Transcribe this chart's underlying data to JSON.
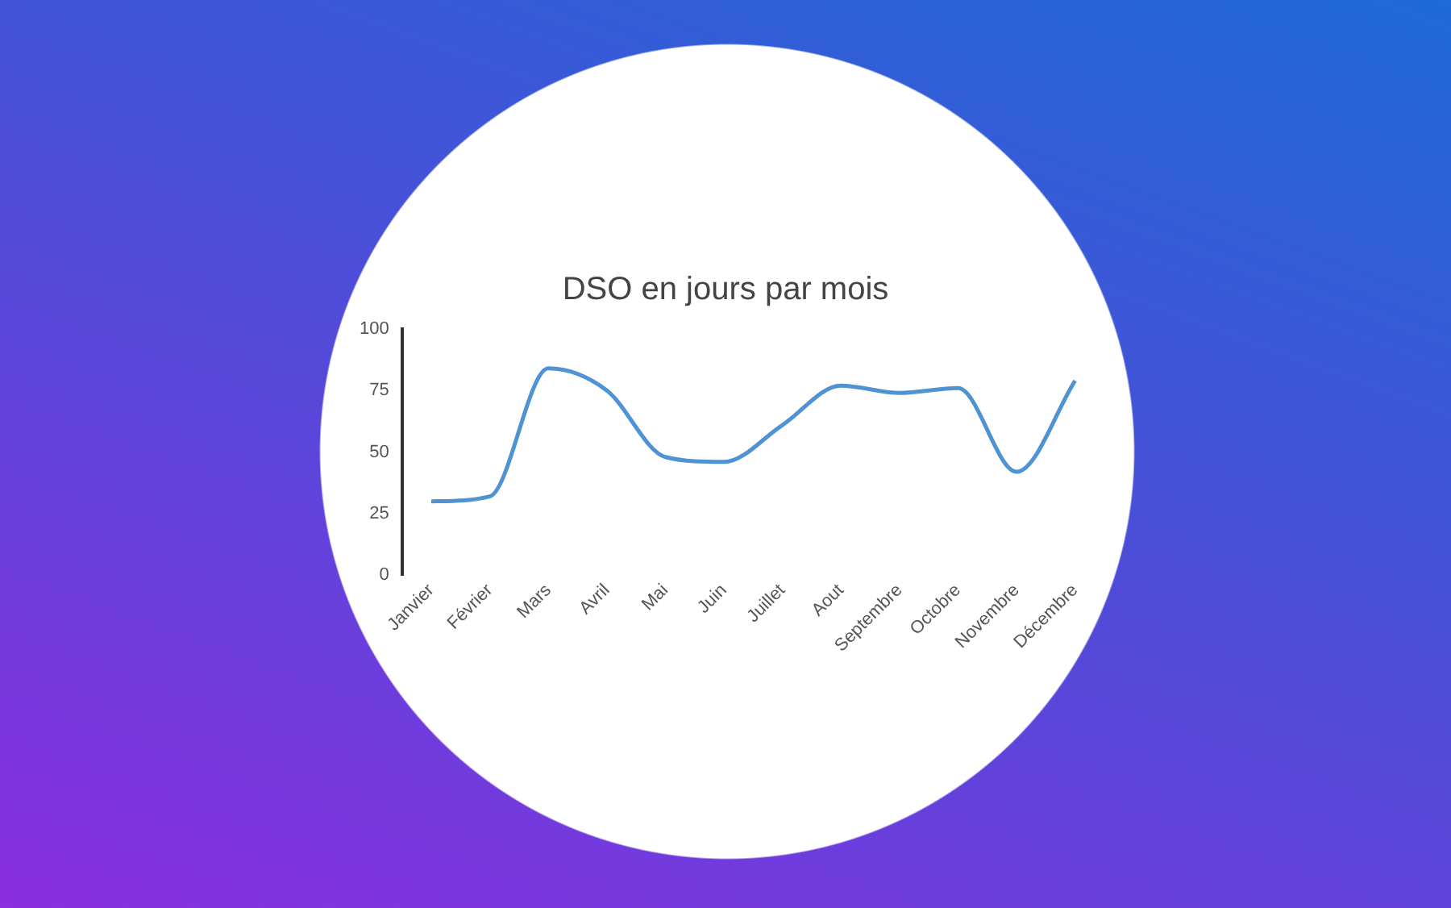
{
  "chart_data": {
    "type": "line",
    "title": "DSO en jours par mois",
    "categories": [
      "Janvier",
      "Février",
      "Mars",
      "Avril",
      "Mai",
      "Juin",
      "Juillet",
      "Aout",
      "Septembre",
      "Octobre",
      "Novembre",
      "Décembre"
    ],
    "series": [
      {
        "color": "#4f93d2",
        "values": [
          30,
          32,
          84,
          75,
          48,
          46,
          61,
          77,
          74,
          76,
          42,
          79
        ]
      }
    ],
    "ylim": [
      0,
      100
    ],
    "yticks": [
      0,
      25,
      50,
      75,
      100
    ],
    "grid": false,
    "legend": false,
    "marker": "none",
    "line_style": "solid"
  }
}
